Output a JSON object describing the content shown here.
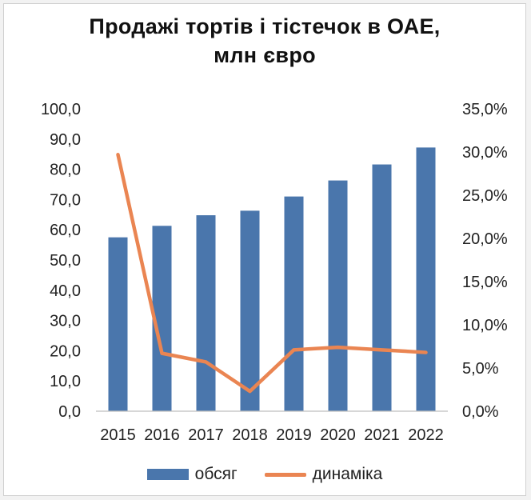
{
  "chart_data": {
    "type": "bar",
    "title_line1": "Продажі тортів і тістечок в ОАЕ,",
    "title_line2": "млн євро",
    "categories": [
      "2015",
      "2016",
      "2017",
      "2018",
      "2019",
      "2020",
      "2021",
      "2022"
    ],
    "series": [
      {
        "name": "обсяг",
        "type": "bar",
        "axis": "left",
        "color": "#4a76ac",
        "values": [
          57.5,
          61.3,
          64.8,
          66.3,
          71.0,
          76.3,
          81.6,
          87.2
        ]
      },
      {
        "name": "динаміка",
        "type": "line",
        "axis": "right",
        "color": "#ea8552",
        "values": [
          0.297,
          0.067,
          0.057,
          0.023,
          0.071,
          0.074,
          0.071,
          0.068
        ]
      }
    ],
    "y_left": {
      "min": 0,
      "max": 100,
      "step": 10,
      "tick_labels": [
        "0,0",
        "10,0",
        "20,0",
        "30,0",
        "40,0",
        "50,0",
        "60,0",
        "70,0",
        "80,0",
        "90,0",
        "100,0"
      ]
    },
    "y_right": {
      "min": 0,
      "max": 0.35,
      "step": 0.05,
      "tick_labels": [
        "0,0%",
        "5,0%",
        "10,0%",
        "15,0%",
        "20,0%",
        "25,0%",
        "30,0%",
        "35,0%"
      ]
    },
    "grid": false,
    "legend_position": "bottom"
  }
}
